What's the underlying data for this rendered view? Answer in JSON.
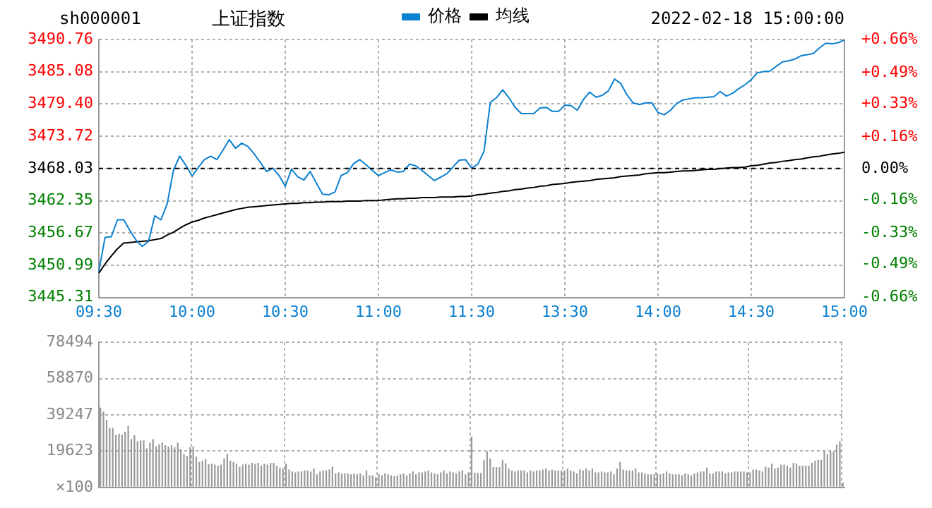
{
  "chart_data": [
    {
      "type": "line",
      "title": "上证指数",
      "subtitle": "sh000001",
      "annotations": [
        "2022-02-18 15:00:00"
      ],
      "legend": "top",
      "grid": true,
      "marker": "none",
      "categories": [
        "09:30",
        null,
        null,
        null,
        null,
        null,
        null,
        null,
        null,
        null,
        null,
        null,
        null,
        null,
        null,
        "10:00",
        null,
        null,
        null,
        null,
        null,
        null,
        null,
        null,
        null,
        null,
        null,
        null,
        null,
        null,
        "10:30",
        null,
        null,
        null,
        null,
        null,
        null,
        null,
        null,
        null,
        null,
        null,
        null,
        null,
        null,
        "11:00",
        null,
        null,
        null,
        null,
        null,
        null,
        null,
        null,
        null,
        null,
        null,
        null,
        null,
        null,
        "11:30",
        null,
        null,
        null,
        null,
        null,
        null,
        null,
        null,
        null,
        null,
        null,
        null,
        null,
        null,
        "13:30",
        null,
        null,
        null,
        null,
        null,
        null,
        null,
        null,
        null,
        null,
        null,
        null,
        null,
        null,
        "14:00",
        null,
        null,
        null,
        null,
        null,
        null,
        null,
        null,
        null,
        null,
        null,
        null,
        null,
        null,
        "14:30",
        null,
        null,
        null,
        null,
        null,
        null,
        null,
        null,
        null,
        null,
        null,
        null,
        null,
        null,
        "15:00"
      ],
      "ylim": [
        3445.31,
        3490.76
      ],
      "yticks": [
        3445.31,
        3450.99,
        3456.67,
        3462.35,
        3468.03,
        3473.72,
        {
          "value": 3479.4,
          "label": "3479.40"
        },
        3485.08,
        3490.76
      ],
      "y2lim": [
        -0.66,
        0.66
      ],
      "y2ticks": [
        {
          "value": -0.66,
          "label": "-0.66%"
        },
        {
          "value": -0.49,
          "label": "-0.49%"
        },
        {
          "value": -0.33,
          "label": "-0.33%"
        },
        {
          "value": -0.16,
          "label": "-0.16%"
        },
        {
          "value": 0,
          "label": "0.00%"
        },
        {
          "value": 0.16,
          "label": "+0.16%"
        },
        {
          "value": 0.33,
          "label": "+0.33%"
        },
        {
          "value": 0.49,
          "label": "+0.49%"
        },
        {
          "value": 0.66,
          "label": "+0.66%"
        }
      ],
      "ref_lines": [
        {
          "axis": "y",
          "value": 3468.03,
          "color": "#000000",
          "line_style": "dashed"
        }
      ],
      "series": [
        {
          "name": "价格",
          "color": "#0a80d0",
          "values": [
            3449.9,
            3455.9,
            3456.0,
            3459.0,
            3459.0,
            3457.1,
            3455.4,
            3454.3,
            3455.2,
            3459.7,
            3459.0,
            3461.8,
            3467.7,
            3470.2,
            3468.6,
            3466.7,
            3468.2,
            3469.6,
            3470.2,
            3469.6,
            3471.3,
            3473.1,
            3471.6,
            3472.5,
            3471.9,
            3470.6,
            3469.1,
            3467.5,
            3468.1,
            3466.8,
            3464.9,
            3467.9,
            3466.6,
            3466.0,
            3467.5,
            3465.5,
            3463.5,
            3463.4,
            3463.9,
            3466.8,
            3467.3,
            3468.9,
            3469.6,
            3468.7,
            3467.7,
            3466.8,
            3467.3,
            3467.8,
            3467.4,
            3467.5,
            3468.8,
            3468.5,
            3467.7,
            3466.8,
            3465.9,
            3466.5,
            3467.1,
            3468.3,
            3469.5,
            3469.6,
            3468.1,
            3468.8,
            3471.1,
            3479.7,
            3480.5,
            3481.9,
            3480.5,
            3478.8,
            3477.7,
            3477.7,
            3477.7,
            3478.7,
            3478.8,
            3478.1,
            3478.1,
            3479.2,
            3479.1,
            3478.3,
            3480.2,
            3481.5,
            3480.6,
            3480.9,
            3481.7,
            3483.8,
            3483.0,
            3481.0,
            3479.6,
            3479.3,
            3479.6,
            3479.6,
            3477.9,
            3477.5,
            3478.3,
            3479.5,
            3480.1,
            3480.3,
            3480.5,
            3480.5,
            3480.6,
            3480.7,
            3481.6,
            3480.8,
            3481.3,
            3482.1,
            3482.8,
            3483.7,
            3484.9,
            3485.1,
            3485.2,
            3486.0,
            3486.8,
            3487.0,
            3487.3,
            3487.9,
            3488.1,
            3488.3,
            3489.3,
            3490.1,
            3490.0,
            3490.2,
            3490.7
          ]
        },
        {
          "name": "均线",
          "color": "#000000",
          "values": [
            3449.6,
            3451.2,
            3452.6,
            3453.9,
            3454.9,
            3455.0,
            3455.1,
            3455.2,
            3455.3,
            3455.5,
            3455.7,
            3456.3,
            3456.8,
            3457.5,
            3458.1,
            3458.6,
            3458.9,
            3459.3,
            3459.6,
            3459.9,
            3460.2,
            3460.5,
            3460.8,
            3461.0,
            3461.2,
            3461.3,
            3461.4,
            3461.5,
            3461.6,
            3461.7,
            3461.8,
            3461.9,
            3461.9,
            3462.0,
            3462.0,
            3462.1,
            3462.1,
            3462.2,
            3462.2,
            3462.2,
            3462.3,
            3462.3,
            3462.3,
            3462.4,
            3462.4,
            3462.4,
            3462.5,
            3462.6,
            3462.7,
            3462.7,
            3462.8,
            3462.8,
            3462.9,
            3462.9,
            3462.9,
            3463.0,
            3463.0,
            3463.0,
            3463.1,
            3463.1,
            3463.2,
            3463.4,
            3463.5,
            3463.7,
            3463.8,
            3464.0,
            3464.1,
            3464.3,
            3464.4,
            3464.6,
            3464.7,
            3464.9,
            3465.0,
            3465.2,
            3465.3,
            3465.4,
            3465.6,
            3465.7,
            3465.8,
            3465.9,
            3466.1,
            3466.2,
            3466.3,
            3466.4,
            3466.6,
            3466.7,
            3466.8,
            3466.9,
            3467.1,
            3467.2,
            3467.3,
            3467.3,
            3467.4,
            3467.5,
            3467.6,
            3467.6,
            3467.7,
            3467.8,
            3467.9,
            3467.9,
            3468.0,
            3468.1,
            3468.2,
            3468.2,
            3468.3,
            3468.5,
            3468.6,
            3468.8,
            3469.0,
            3469.1,
            3469.3,
            3469.4,
            3469.6,
            3469.7,
            3469.9,
            3470.1,
            3470.2,
            3470.4,
            3470.6,
            3470.7,
            3470.9
          ]
        }
      ]
    },
    {
      "type": "bar",
      "color": "#999999",
      "grid": true,
      "tick_labels": "y",
      "ylabel": "×100",
      "ylim": [
        0,
        78494
      ],
      "yticks": [
        {
          "value": 0,
          "label": null
        },
        19623,
        39247,
        58870,
        78494
      ],
      "categories": [
        null,
        null,
        null,
        null,
        null,
        null,
        null,
        null,
        null,
        null,
        null,
        null,
        null,
        null,
        null,
        null,
        null,
        null,
        null,
        null,
        null,
        null,
        null,
        null,
        null,
        null,
        null,
        null,
        null,
        null,
        null,
        null,
        null,
        null,
        null,
        null,
        null,
        null,
        null,
        null,
        null,
        null,
        null,
        null,
        null,
        null,
        null,
        null,
        null,
        null,
        null,
        null,
        null,
        null,
        null,
        null,
        null,
        null,
        null,
        null,
        null,
        null,
        null,
        null,
        null,
        null,
        null,
        null,
        null,
        null,
        null,
        null,
        null,
        null,
        null,
        null,
        null,
        null,
        null,
        null,
        null,
        null,
        null,
        null,
        null,
        null,
        null,
        null,
        null,
        null,
        null,
        null,
        null,
        null,
        null,
        null,
        null,
        null,
        null,
        null,
        null,
        null,
        null,
        null,
        null,
        null,
        null,
        null,
        null,
        null,
        null,
        null,
        null,
        null,
        null,
        null,
        null,
        null,
        null,
        null,
        null,
        null,
        null,
        null,
        null,
        null,
        null,
        null,
        null,
        null,
        null,
        null,
        null,
        null,
        null,
        null,
        null,
        null,
        null,
        null,
        null,
        null,
        null,
        null,
        null,
        null,
        null,
        null,
        null,
        null,
        null,
        null,
        null,
        null,
        null,
        null,
        null,
        null,
        null,
        null,
        null,
        null,
        null,
        null,
        null,
        null,
        null,
        null,
        null,
        null,
        null,
        null,
        null,
        null,
        null,
        null,
        null,
        null,
        null,
        null,
        null,
        null,
        null,
        null,
        null,
        null,
        null,
        null,
        null,
        null,
        null,
        null,
        null,
        null,
        null,
        null,
        null,
        null,
        null,
        null,
        null,
        null,
        null,
        null,
        null,
        null,
        null,
        null,
        null,
        null,
        null,
        null,
        null,
        null,
        null,
        null,
        null,
        null,
        null,
        null,
        null,
        null,
        null,
        null,
        null,
        null,
        null,
        null,
        null,
        null,
        null,
        null,
        null,
        null,
        null,
        null,
        null,
        null,
        null,
        null,
        null
      ],
      "values": [
        43200,
        41100,
        36600,
        32200,
        32200,
        28500,
        29000,
        28500,
        30100,
        33200,
        26200,
        28300,
        24900,
        25400,
        25400,
        21200,
        24300,
        26200,
        22200,
        23300,
        24300,
        22800,
        22200,
        22800,
        21700,
        24300,
        20700,
        18100,
        17000,
        21700,
        22200,
        16500,
        13900,
        14400,
        15400,
        12600,
        12800,
        12300,
        11800,
        12300,
        15700,
        18100,
        14400,
        13900,
        12800,
        11200,
        12300,
        12800,
        12300,
        13300,
        12800,
        13300,
        11800,
        12800,
        12300,
        13300,
        13300,
        11800,
        10700,
        10200,
        12800,
        9700,
        8600,
        8100,
        8600,
        8600,
        9200,
        9200,
        8600,
        10200,
        7100,
        8600,
        9200,
        9200,
        9700,
        11200,
        7600,
        8100,
        7600,
        7600,
        7600,
        7100,
        7600,
        7100,
        7600,
        6500,
        9200,
        6500,
        6500,
        5500,
        7100,
        6500,
        7600,
        7100,
        6500,
        6000,
        6500,
        7100,
        7600,
        6500,
        7600,
        8600,
        7100,
        8100,
        8100,
        8600,
        9200,
        8100,
        7600,
        7100,
        8100,
        9200,
        7600,
        8600,
        8100,
        7600,
        8600,
        9200,
        7100,
        8100,
        27500,
        7800,
        7800,
        7800,
        14900,
        19600,
        15700,
        11000,
        11000,
        11000,
        14900,
        13100,
        10200,
        9200,
        8600,
        9200,
        9200,
        9200,
        8100,
        9200,
        8600,
        9200,
        9200,
        9700,
        10200,
        9200,
        9700,
        9200,
        9200,
        9200,
        9200,
        10200,
        9200,
        8600,
        7600,
        9700,
        9200,
        10200,
        9200,
        10200,
        8100,
        8100,
        8600,
        8100,
        8100,
        8600,
        7100,
        10200,
        13900,
        9700,
        9200,
        9200,
        9200,
        10200,
        8100,
        8100,
        7600,
        7100,
        7100,
        7100,
        7600,
        7100,
        7600,
        8600,
        7600,
        7100,
        7100,
        7100,
        6500,
        7600,
        7100,
        6500,
        7600,
        8100,
        8600,
        8600,
        10700,
        7600,
        7600,
        8600,
        8600,
        8600,
        7600,
        8100,
        8100,
        8600,
        8600,
        8600,
        8600,
        8100,
        8100,
        9700,
        9700,
        9200,
        8600,
        11200,
        10700,
        12800,
        10200,
        10700,
        12300,
        12300,
        11800,
        10700,
        13300,
        12800,
        11800,
        11800,
        11800,
        11800,
        13300,
        14400,
        14900,
        14900,
        19600,
        18100,
        19600,
        19600,
        23300,
        24900,
        2600
      ]
    }
  ]
}
